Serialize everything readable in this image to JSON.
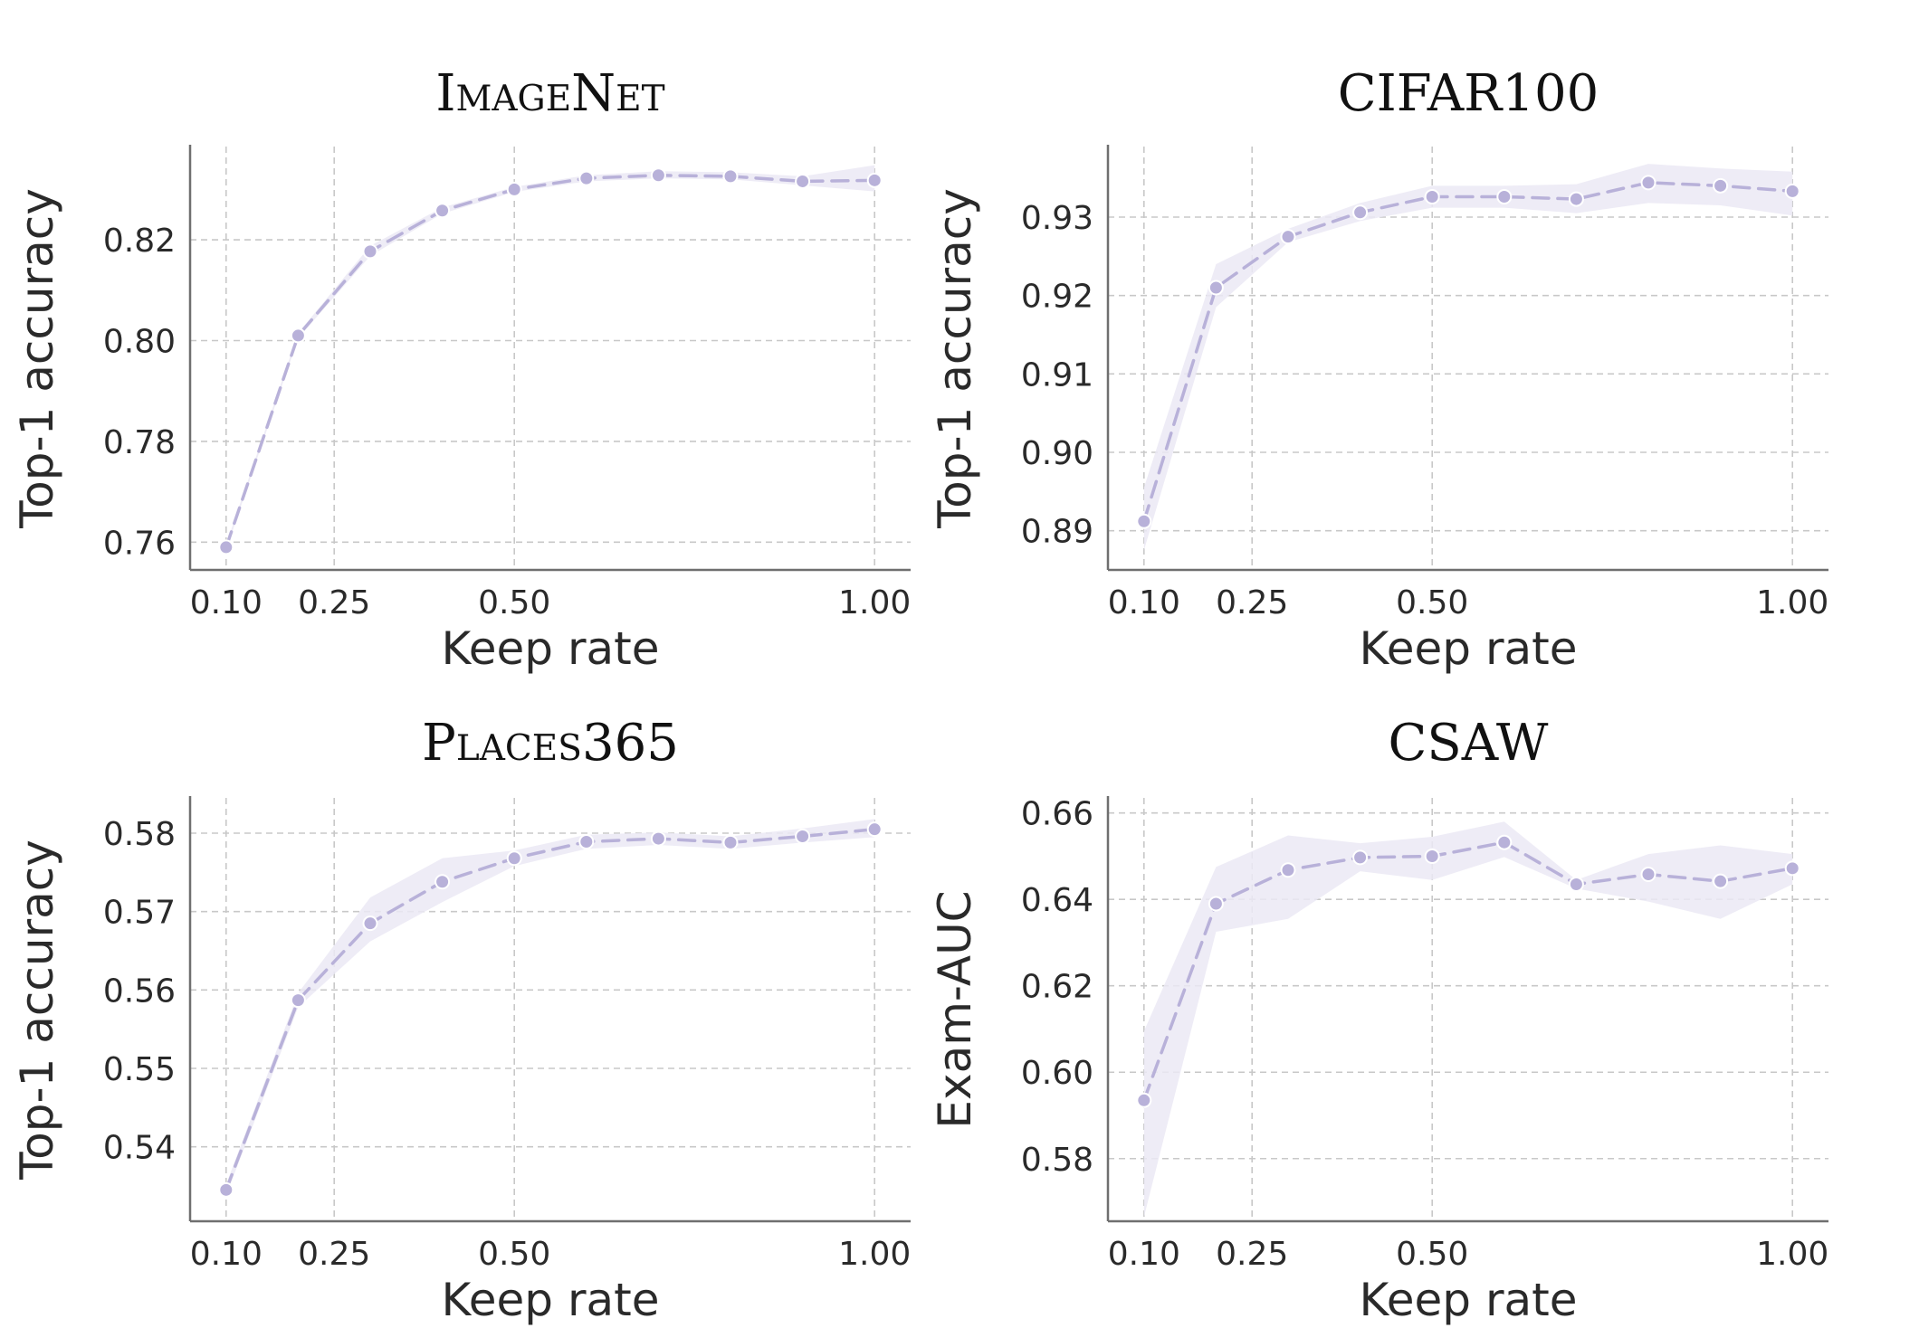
{
  "style": {
    "series_color": "#b8b1d9",
    "band_color": "#ebe9f4"
  },
  "chart_data": [
    {
      "type": "line",
      "title": "ImageNet",
      "title_smallcaps": true,
      "xlabel": "Keep rate",
      "ylabel": "Top-1 accuracy",
      "xlim": [
        0.05,
        1.05
      ],
      "ylim": [
        0.7545,
        0.8385
      ],
      "xticks": [
        0.1,
        0.25,
        0.5,
        1.0
      ],
      "xtick_labels": [
        "0.10",
        "0.25",
        "0.50",
        "1.00"
      ],
      "yticks": [
        0.76,
        0.78,
        0.8,
        0.82
      ],
      "ytick_labels": [
        "0.76",
        "0.78",
        "0.80",
        "0.82"
      ],
      "grid": true,
      "series": [
        {
          "x": [
            0.1,
            0.2,
            0.3,
            0.4,
            0.5,
            0.6,
            0.7,
            0.8,
            0.9,
            1.0
          ],
          "y": [
            0.759,
            0.801,
            0.8177,
            0.8258,
            0.83,
            0.8322,
            0.8328,
            0.8326,
            0.8316,
            0.8318
          ],
          "lower": [
            0.7585,
            0.8005,
            0.8168,
            0.8252,
            0.8295,
            0.8316,
            0.8322,
            0.832,
            0.8308,
            0.8296
          ],
          "upper": [
            0.7595,
            0.8015,
            0.8188,
            0.8264,
            0.8305,
            0.8328,
            0.8336,
            0.8334,
            0.8326,
            0.8348
          ]
        }
      ]
    },
    {
      "type": "line",
      "title": "CIFAR100",
      "title_smallcaps": false,
      "xlabel": "Keep rate",
      "ylabel": "Top-1 accuracy",
      "xlim": [
        0.05,
        1.05
      ],
      "ylim": [
        0.885,
        0.939
      ],
      "xticks": [
        0.1,
        0.25,
        0.5,
        1.0
      ],
      "xtick_labels": [
        "0.10",
        "0.25",
        "0.50",
        "1.00"
      ],
      "yticks": [
        0.89,
        0.9,
        0.91,
        0.92,
        0.93
      ],
      "ytick_labels": [
        "0.89",
        "0.90",
        "0.91",
        "0.92",
        "0.93"
      ],
      "grid": true,
      "series": [
        {
          "x": [
            0.1,
            0.2,
            0.3,
            0.4,
            0.5,
            0.6,
            0.7,
            0.8,
            0.9,
            1.0
          ],
          "y": [
            0.8912,
            0.921,
            0.9275,
            0.9306,
            0.9326,
            0.9326,
            0.9323,
            0.9344,
            0.934,
            0.9333
          ],
          "lower": [
            0.8875,
            0.9185,
            0.9268,
            0.9295,
            0.9312,
            0.9312,
            0.9305,
            0.9318,
            0.9315,
            0.9302
          ],
          "upper": [
            0.8955,
            0.924,
            0.9285,
            0.9318,
            0.934,
            0.934,
            0.9342,
            0.9368,
            0.9362,
            0.9358
          ]
        }
      ]
    },
    {
      "type": "line",
      "title": "Places365",
      "title_smallcaps": true,
      "xlabel": "Keep rate",
      "ylabel": "Top-1 accuracy",
      "xlim": [
        0.05,
        1.05
      ],
      "ylim": [
        0.5305,
        0.5845
      ],
      "xticks": [
        0.1,
        0.25,
        0.5,
        1.0
      ],
      "xtick_labels": [
        "0.10",
        "0.25",
        "0.50",
        "1.00"
      ],
      "yticks": [
        0.54,
        0.55,
        0.56,
        0.57,
        0.58
      ],
      "ytick_labels": [
        "0.54",
        "0.55",
        "0.56",
        "0.57",
        "0.58"
      ],
      "grid": true,
      "series": [
        {
          "x": [
            0.1,
            0.2,
            0.3,
            0.4,
            0.5,
            0.6,
            0.7,
            0.8,
            0.9,
            1.0
          ],
          "y": [
            0.5345,
            0.5587,
            0.5685,
            0.5738,
            0.5768,
            0.5789,
            0.5793,
            0.5788,
            0.5796,
            0.5805
          ],
          "lower": [
            0.5338,
            0.5578,
            0.5662,
            0.5712,
            0.5758,
            0.578,
            0.5785,
            0.578,
            0.5788,
            0.5795
          ],
          "upper": [
            0.5352,
            0.5596,
            0.5718,
            0.5768,
            0.5778,
            0.5798,
            0.5801,
            0.5796,
            0.5806,
            0.5818
          ]
        }
      ]
    },
    {
      "type": "line",
      "title": "CSAW",
      "title_smallcaps": false,
      "xlabel": "Keep rate",
      "ylabel": "Exam-AUC",
      "xlim": [
        0.05,
        1.05
      ],
      "ylim": [
        0.5655,
        0.6635
      ],
      "xticks": [
        0.1,
        0.25,
        0.5,
        1.0
      ],
      "xtick_labels": [
        "0.10",
        "0.25",
        "0.50",
        "1.00"
      ],
      "yticks": [
        0.58,
        0.6,
        0.62,
        0.64,
        0.66
      ],
      "ytick_labels": [
        "0.58",
        "0.60",
        "0.62",
        "0.64",
        "0.66"
      ],
      "grid": true,
      "series": [
        {
          "x": [
            0.1,
            0.2,
            0.3,
            0.4,
            0.5,
            0.6,
            0.7,
            0.8,
            0.9,
            1.0
          ],
          "y": [
            0.5935,
            0.639,
            0.6468,
            0.6497,
            0.65,
            0.6532,
            0.6435,
            0.6458,
            0.6442,
            0.6472
          ],
          "lower": [
            0.5665,
            0.6325,
            0.6355,
            0.6465,
            0.6445,
            0.6498,
            0.6425,
            0.6395,
            0.6355,
            0.6435
          ],
          "upper": [
            0.6095,
            0.6475,
            0.6548,
            0.653,
            0.6545,
            0.658,
            0.6445,
            0.6505,
            0.6525,
            0.6505
          ]
        }
      ]
    }
  ]
}
